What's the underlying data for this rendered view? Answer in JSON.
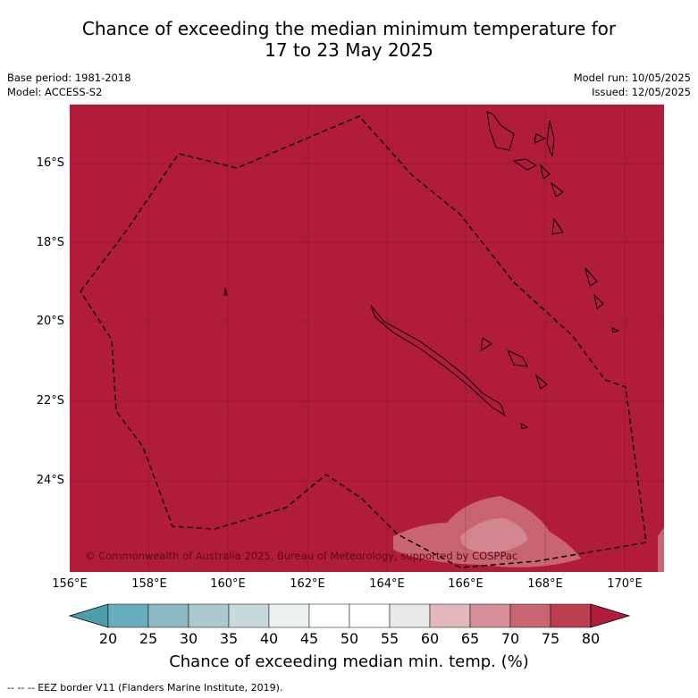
{
  "title": {
    "line1": "Chance of exceeding the median minimum temperature for",
    "line2": "17 to 23 May 2025"
  },
  "meta": {
    "base_period": "Base period: 1981-2018",
    "model": "Model: ACCESS-S2",
    "model_run": "Model run: 10/05/2025",
    "issued": "Issued: 12/05/2025"
  },
  "map": {
    "lat_labels": [
      "16°S",
      "18°S",
      "20°S",
      "22°S",
      "24°S"
    ],
    "lon_labels": [
      "156°E",
      "158°E",
      "160°E",
      "162°E",
      "164°E",
      "166°E",
      "168°E",
      "170°E"
    ],
    "copyright": "© Commonwealth of Australia 2025, Bureau of Meteorology, supported by COSPPac",
    "main_color": "#b11c3a"
  },
  "colorbar": {
    "ticks": [
      "20",
      "25",
      "30",
      "35",
      "40",
      "45",
      "50",
      "55",
      "60",
      "65",
      "70",
      "75",
      "80"
    ],
    "colors": [
      "#68adbb",
      "#8cb9c3",
      "#aac8cd",
      "#c8d9dd",
      "#ecf1f2",
      "#ffffff",
      "#ffffff",
      "#e9e9e9",
      "#e2b8bd",
      "#d48f98",
      "#c96570",
      "#bb3e51"
    ],
    "low_color": "#4e9fac",
    "high_color": "#b11c3a",
    "title": "Chance of exceeding median min. temp. (%)"
  },
  "legend": {
    "eez": "--  --  -- EEZ border V11 (Flanders Marine Institute, 2019)."
  }
}
